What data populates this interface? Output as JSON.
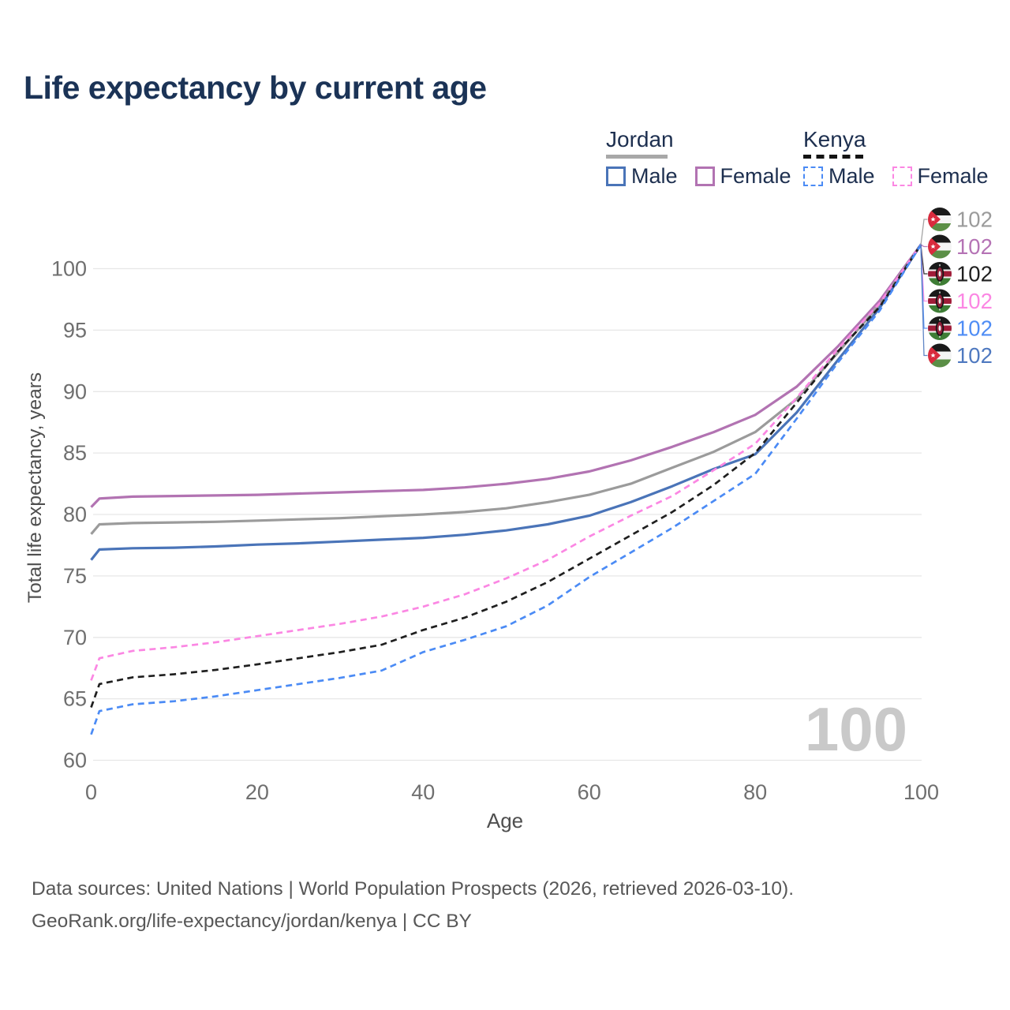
{
  "title": "Life expectancy by current age",
  "watermark": "100",
  "legend": {
    "jordan": {
      "name": "Jordan",
      "underline_color": "#a8a8a8",
      "male_label": "Male",
      "male_color": "#4a74b8",
      "female_label": "Female",
      "female_color": "#b273b2"
    },
    "kenya": {
      "name": "Kenya",
      "underline_color": "#141414",
      "male_label": "Male",
      "male_color": "#4b8bf5",
      "female_label": "Female",
      "female_color": "#fb87e3"
    }
  },
  "footer": {
    "line1": "Data sources: United Nations | World Population Prospects (2026, retrieved 2026-03-10).",
    "line2": "GeoRank.org/life-expectancy/jordan/kenya | CC BY"
  },
  "chart_data": {
    "type": "line",
    "title": "Life expectancy by current age",
    "xlabel": "Age",
    "ylabel": "Total life expectancy, years",
    "xlim": [
      0,
      100
    ],
    "ylim": [
      60,
      102
    ],
    "xticks": [
      0,
      20,
      40,
      60,
      80,
      100
    ],
    "yticks": [
      60,
      65,
      70,
      75,
      80,
      85,
      90,
      95,
      100
    ],
    "grid": "horizontal",
    "grid_color": "#e7e7e7",
    "tick_color": "#6f6f6f",
    "axis_title_color": "#4f4f4f",
    "watermark_color": "#c9c9c9",
    "series": [
      {
        "name": "Jordan Female",
        "country": "Jordan",
        "sex": "Female",
        "color": "#b273b2",
        "dashed": false,
        "points": [
          [
            0,
            80.6
          ],
          [
            1,
            81.3
          ],
          [
            5,
            81.45
          ],
          [
            10,
            81.5
          ],
          [
            15,
            81.55
          ],
          [
            20,
            81.6
          ],
          [
            25,
            81.7
          ],
          [
            30,
            81.8
          ],
          [
            35,
            81.9
          ],
          [
            40,
            82.0
          ],
          [
            45,
            82.2
          ],
          [
            50,
            82.5
          ],
          [
            55,
            82.9
          ],
          [
            60,
            83.5
          ],
          [
            65,
            84.4
          ],
          [
            70,
            85.5
          ],
          [
            75,
            86.7
          ],
          [
            80,
            88.1
          ],
          [
            85,
            90.4
          ],
          [
            90,
            93.7
          ],
          [
            95,
            97.4
          ],
          [
            100,
            102
          ]
        ]
      },
      {
        "name": "Jordan",
        "country": "Jordan",
        "sex": "Both",
        "color": "#9b9b9b",
        "dashed": false,
        "points": [
          [
            0,
            78.4
          ],
          [
            1,
            79.2
          ],
          [
            5,
            79.3
          ],
          [
            10,
            79.35
          ],
          [
            15,
            79.4
          ],
          [
            20,
            79.5
          ],
          [
            25,
            79.6
          ],
          [
            30,
            79.7
          ],
          [
            35,
            79.85
          ],
          [
            40,
            80.0
          ],
          [
            45,
            80.2
          ],
          [
            50,
            80.5
          ],
          [
            55,
            81.0
          ],
          [
            60,
            81.6
          ],
          [
            65,
            82.5
          ],
          [
            70,
            83.8
          ],
          [
            75,
            85.1
          ],
          [
            80,
            86.7
          ],
          [
            85,
            89.4
          ],
          [
            90,
            93.2
          ],
          [
            95,
            97.1
          ],
          [
            100,
            102
          ]
        ]
      },
      {
        "name": "Jordan Male",
        "country": "Jordan",
        "sex": "Male",
        "color": "#4a74b8",
        "dashed": false,
        "points": [
          [
            0,
            76.3
          ],
          [
            1,
            77.15
          ],
          [
            5,
            77.25
          ],
          [
            10,
            77.3
          ],
          [
            15,
            77.4
          ],
          [
            20,
            77.55
          ],
          [
            25,
            77.65
          ],
          [
            30,
            77.8
          ],
          [
            35,
            77.95
          ],
          [
            40,
            78.1
          ],
          [
            45,
            78.35
          ],
          [
            50,
            78.7
          ],
          [
            55,
            79.2
          ],
          [
            60,
            79.9
          ],
          [
            65,
            81.0
          ],
          [
            70,
            82.3
          ],
          [
            75,
            83.7
          ],
          [
            80,
            84.9
          ],
          [
            85,
            88.3
          ],
          [
            90,
            92.6
          ],
          [
            95,
            96.8
          ],
          [
            100,
            102
          ]
        ]
      },
      {
        "name": "Kenya Female",
        "country": "Kenya",
        "sex": "Female",
        "color": "#fb87e3",
        "dashed": true,
        "points": [
          [
            0,
            66.5
          ],
          [
            1,
            68.3
          ],
          [
            5,
            68.9
          ],
          [
            10,
            69.2
          ],
          [
            15,
            69.6
          ],
          [
            20,
            70.1
          ],
          [
            25,
            70.6
          ],
          [
            30,
            71.1
          ],
          [
            35,
            71.7
          ],
          [
            40,
            72.5
          ],
          [
            45,
            73.5
          ],
          [
            50,
            74.8
          ],
          [
            55,
            76.3
          ],
          [
            60,
            78.2
          ],
          [
            65,
            79.9
          ],
          [
            70,
            81.5
          ],
          [
            75,
            83.6
          ],
          [
            80,
            85.75
          ],
          [
            85,
            89.5
          ],
          [
            90,
            93.5
          ],
          [
            95,
            97.2
          ],
          [
            100,
            102
          ]
        ]
      },
      {
        "name": "Kenya",
        "country": "Kenya",
        "sex": "Both",
        "color": "#1f1f1f",
        "dashed": true,
        "points": [
          [
            0,
            64.3
          ],
          [
            1,
            66.2
          ],
          [
            5,
            66.75
          ],
          [
            10,
            67.0
          ],
          [
            15,
            67.35
          ],
          [
            20,
            67.8
          ],
          [
            25,
            68.3
          ],
          [
            30,
            68.8
          ],
          [
            35,
            69.4
          ],
          [
            40,
            70.6
          ],
          [
            45,
            71.6
          ],
          [
            50,
            72.9
          ],
          [
            55,
            74.5
          ],
          [
            60,
            76.4
          ],
          [
            65,
            78.3
          ],
          [
            70,
            80.2
          ],
          [
            75,
            82.4
          ],
          [
            80,
            85.0
          ],
          [
            85,
            89.1
          ],
          [
            90,
            93.3
          ],
          [
            95,
            96.9
          ],
          [
            100,
            102
          ]
        ]
      },
      {
        "name": "Kenya Male",
        "country": "Kenya",
        "sex": "Male",
        "color": "#4b8bf5",
        "dashed": true,
        "points": [
          [
            0,
            62.1
          ],
          [
            1,
            64.0
          ],
          [
            5,
            64.55
          ],
          [
            10,
            64.8
          ],
          [
            15,
            65.2
          ],
          [
            20,
            65.7
          ],
          [
            25,
            66.2
          ],
          [
            30,
            66.7
          ],
          [
            35,
            67.3
          ],
          [
            40,
            68.8
          ],
          [
            45,
            69.8
          ],
          [
            50,
            70.9
          ],
          [
            55,
            72.6
          ],
          [
            60,
            74.9
          ],
          [
            65,
            76.9
          ],
          [
            70,
            78.9
          ],
          [
            75,
            81.1
          ],
          [
            80,
            83.3
          ],
          [
            85,
            87.8
          ],
          [
            90,
            92.4
          ],
          [
            95,
            96.6
          ],
          [
            100,
            102
          ]
        ]
      }
    ],
    "end_labels": [
      {
        "text": "102",
        "series": "Jordan",
        "flag": "jordan",
        "color": "#9b9b9b"
      },
      {
        "text": "102",
        "series": "Jordan Female",
        "flag": "jordan",
        "color": "#b573b5"
      },
      {
        "text": "102",
        "series": "Kenya",
        "flag": "kenya",
        "color": "#1f1f1f"
      },
      {
        "text": "102",
        "series": "Kenya Female",
        "flag": "kenya",
        "color": "#fb87e3"
      },
      {
        "text": "102",
        "series": "Kenya Male",
        "flag": "kenya",
        "color": "#4f8df5"
      },
      {
        "text": "102",
        "series": "Jordan Male",
        "flag": "jordan",
        "color": "#4f79c0"
      }
    ]
  }
}
